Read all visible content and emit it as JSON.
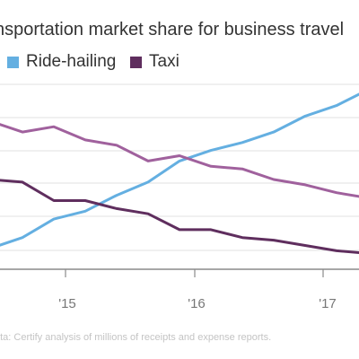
{
  "title": "nsportation market share for business travel",
  "legend": {
    "items": [
      {
        "label": "Ride-hailing",
        "color": "#64afe1"
      },
      {
        "label": "Taxi",
        "color": "#5f2e5e"
      }
    ]
  },
  "source": "ata: Certify analysis of millions of receipts and expense reports.",
  "chart_data": {
    "type": "line",
    "title": "nsportation market share for business travel",
    "xlabel": "",
    "ylabel": "",
    "x_tick_labels": [
      "'15",
      "'16",
      "'17"
    ],
    "series": [
      {
        "name": "Ride-hailing",
        "color": "#64afe1",
        "values": [
          8,
          12,
          19,
          22,
          28,
          33,
          41,
          45,
          48,
          52,
          58,
          62,
          68
        ]
      },
      {
        "name": "",
        "color": "#a0619d",
        "values": [
          56,
          52,
          54,
          49,
          47,
          41,
          43,
          39,
          38,
          34,
          32,
          29,
          27
        ]
      },
      {
        "name": "Taxi",
        "color": "#5f2e5e",
        "values": [
          34,
          33,
          26,
          26,
          23,
          21,
          15,
          15,
          12,
          11,
          9,
          7,
          6
        ]
      }
    ],
    "grid": true,
    "legend_position": "top-left"
  }
}
